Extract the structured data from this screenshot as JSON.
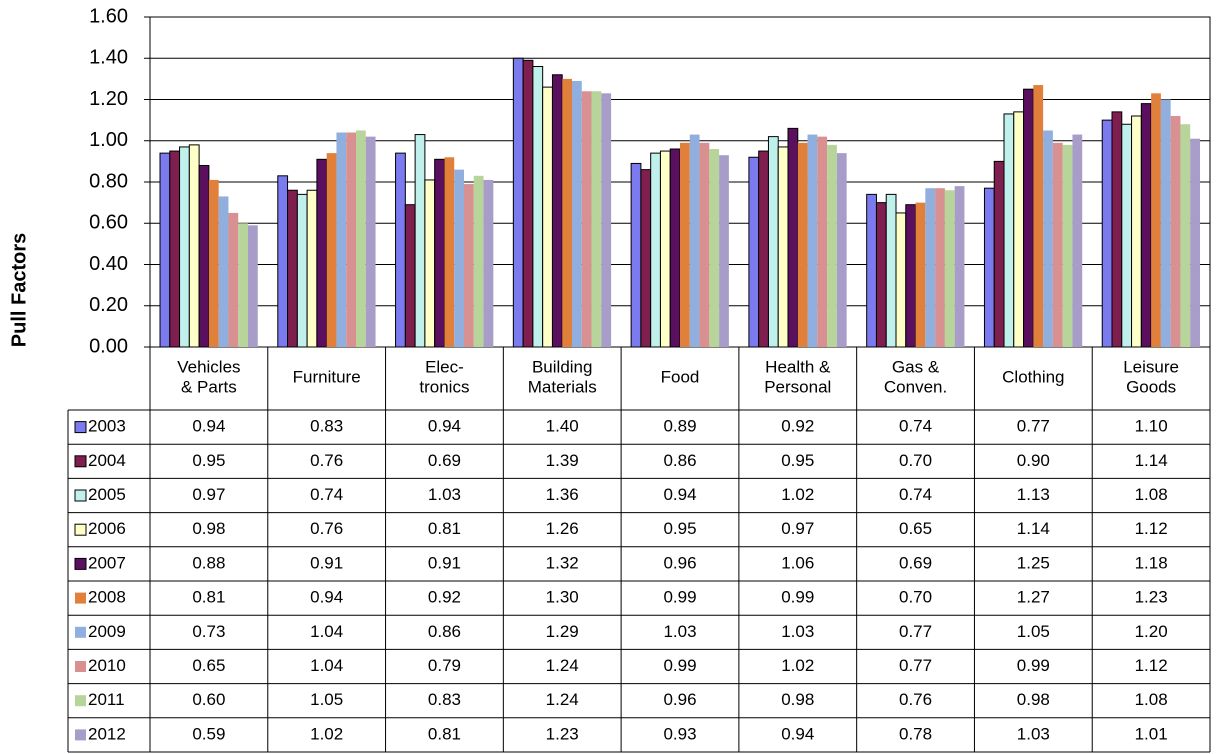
{
  "chart_data": {
    "type": "bar",
    "y_label": "Pull Factors",
    "categories": [
      "Vehicles\n& Parts",
      "Furniture",
      "Elec-\ntronics",
      "Building\nMaterials",
      "Food",
      "Health &\nPersonal",
      "Gas &\nConven.",
      "Clothing",
      "Leisure\nGoods"
    ],
    "ylim": [
      0,
      1.6
    ],
    "yticks": [
      {
        "value": 0,
        "label": "0.00"
      },
      {
        "value": 0.2,
        "label": "0.20"
      },
      {
        "value": 0.4,
        "label": "0.40"
      },
      {
        "value": 0.6,
        "label": "0.60"
      },
      {
        "value": 0.8,
        "label": "0.80"
      },
      {
        "value": 1,
        "label": "1.00"
      },
      {
        "value": 1.2,
        "label": "1.20"
      },
      {
        "value": 1.4,
        "label": "1.40"
      },
      {
        "value": 1.6,
        "label": "1.60"
      }
    ],
    "grid": true,
    "series": [
      {
        "name": "2003",
        "color": "#7b7bef",
        "stroke": "#000",
        "values": [
          0.94,
          0.83,
          0.94,
          1.4,
          0.89,
          0.92,
          0.74,
          0.77,
          1.1
        ],
        "value_labels": [
          "0.94",
          "0.83",
          "0.94",
          "1.40",
          "0.89",
          "0.92",
          "0.74",
          "0.77",
          "1.10"
        ]
      },
      {
        "name": "2004",
        "color": "#7f1f4f",
        "stroke": "#000",
        "values": [
          0.95,
          0.76,
          0.69,
          1.39,
          0.86,
          0.95,
          0.7,
          0.9,
          1.14
        ],
        "value_labels": [
          "0.95",
          "0.76",
          "0.69",
          "1.39",
          "0.86",
          "0.95",
          "0.70",
          "0.90",
          "1.14"
        ]
      },
      {
        "name": "2005",
        "color": "#bff0ec",
        "stroke": "#000",
        "values": [
          0.97,
          0.74,
          1.03,
          1.36,
          0.94,
          1.02,
          0.74,
          1.13,
          1.08
        ],
        "value_labels": [
          "0.97",
          "0.74",
          "1.03",
          "1.36",
          "0.94",
          "1.02",
          "0.74",
          "1.13",
          "1.08"
        ]
      },
      {
        "name": "2006",
        "color": "#ffffc8",
        "stroke": "#000",
        "values": [
          0.98,
          0.76,
          0.81,
          1.26,
          0.95,
          0.97,
          0.65,
          1.14,
          1.12
        ],
        "value_labels": [
          "0.98",
          "0.76",
          "0.81",
          "1.26",
          "0.95",
          "0.97",
          "0.65",
          "1.14",
          "1.12"
        ]
      },
      {
        "name": "2007",
        "color": "#5a0f5f",
        "stroke": "#000",
        "values": [
          0.88,
          0.91,
          0.91,
          1.32,
          0.96,
          1.06,
          0.69,
          1.25,
          1.18
        ],
        "value_labels": [
          "0.88",
          "0.91",
          "0.91",
          "1.32",
          "0.96",
          "1.06",
          "0.69",
          "1.25",
          "1.18"
        ]
      },
      {
        "name": "2008",
        "color": "#e0803a",
        "values": [
          0.81,
          0.94,
          0.92,
          1.3,
          0.99,
          0.99,
          0.7,
          1.27,
          1.23
        ],
        "value_labels": [
          "0.81",
          "0.94",
          "0.92",
          "1.30",
          "0.99",
          "0.99",
          "0.70",
          "1.27",
          "1.23"
        ]
      },
      {
        "name": "2009",
        "color": "#90aede",
        "values": [
          0.73,
          1.04,
          0.86,
          1.29,
          1.03,
          1.03,
          0.77,
          1.05,
          1.2
        ],
        "value_labels": [
          "0.73",
          "1.04",
          "0.86",
          "1.29",
          "1.03",
          "1.03",
          "0.77",
          "1.05",
          "1.20"
        ]
      },
      {
        "name": "2010",
        "color": "#d89090",
        "values": [
          0.65,
          1.04,
          0.79,
          1.24,
          0.99,
          1.02,
          0.77,
          0.99,
          1.12
        ],
        "value_labels": [
          "0.65",
          "1.04",
          "0.79",
          "1.24",
          "0.99",
          "1.02",
          "0.77",
          "0.99",
          "1.12"
        ]
      },
      {
        "name": "2011",
        "color": "#b7d49a",
        "values": [
          0.6,
          1.05,
          0.83,
          1.24,
          0.96,
          0.98,
          0.76,
          0.98,
          1.08
        ],
        "value_labels": [
          "0.60",
          "1.05",
          "0.83",
          "1.24",
          "0.96",
          "0.98",
          "0.76",
          "0.98",
          "1.08"
        ]
      },
      {
        "name": "2012",
        "color": "#a89dc8",
        "values": [
          0.59,
          1.02,
          0.81,
          1.23,
          0.93,
          0.94,
          0.78,
          1.03,
          1.01
        ],
        "value_labels": [
          "0.59",
          "1.02",
          "0.81",
          "1.23",
          "0.93",
          "0.94",
          "0.78",
          "1.03",
          "1.01"
        ]
      }
    ]
  }
}
